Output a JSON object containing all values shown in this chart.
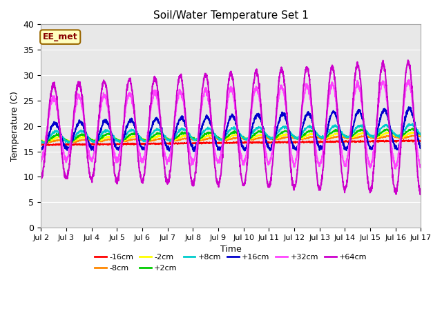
{
  "title": "Soil/Water Temperature Set 1",
  "xlabel": "Time",
  "ylabel": "Temperature (C)",
  "ylim": [
    0,
    40
  ],
  "yticks": [
    0,
    5,
    10,
    15,
    20,
    25,
    30,
    35,
    40
  ],
  "x_labels": [
    "Jul 2",
    "Jul 3",
    "Jul 4",
    "Jul 5",
    "Jul 6",
    "Jul 7",
    "Jul 8",
    "Jul 9",
    "Jul 10",
    "Jul 11",
    "Jul 12",
    "Jul 13",
    "Jul 14",
    "Jul 15",
    "Jul 16",
    "Jul 17"
  ],
  "annotation_text": "EE_met",
  "annotation_bg": "#ffffc0",
  "annotation_border": "#996600",
  "annotation_text_color": "#880000",
  "bg_color": "#e8e8e8",
  "series": [
    {
      "label": "-16cm",
      "color": "#ff0000"
    },
    {
      "label": "-8cm",
      "color": "#ff8800"
    },
    {
      "label": "-2cm",
      "color": "#ffff00"
    },
    {
      "label": "+2cm",
      "color": "#00cc00"
    },
    {
      "label": "+8cm",
      "color": "#00cccc"
    },
    {
      "label": "+16cm",
      "color": "#0000cc"
    },
    {
      "label": "+32cm",
      "color": "#ff44ff"
    },
    {
      "label": "+64cm",
      "color": "#cc00cc"
    }
  ]
}
